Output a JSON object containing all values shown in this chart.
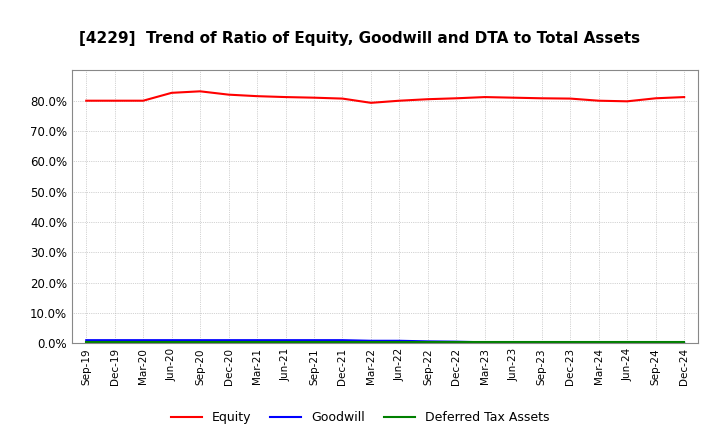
{
  "title": "[4229]  Trend of Ratio of Equity, Goodwill and DTA to Total Assets",
  "x_labels": [
    "Sep-19",
    "Dec-19",
    "Mar-20",
    "Jun-20",
    "Sep-20",
    "Dec-20",
    "Mar-21",
    "Jun-21",
    "Sep-21",
    "Dec-21",
    "Mar-22",
    "Jun-22",
    "Sep-22",
    "Dec-22",
    "Mar-23",
    "Jun-23",
    "Sep-23",
    "Dec-23",
    "Mar-24",
    "Jun-24",
    "Sep-24",
    "Dec-24"
  ],
  "equity": [
    0.8,
    0.8,
    0.8,
    0.826,
    0.831,
    0.82,
    0.815,
    0.812,
    0.81,
    0.807,
    0.793,
    0.8,
    0.805,
    0.808,
    0.812,
    0.81,
    0.808,
    0.807,
    0.8,
    0.798,
    0.808,
    0.812
  ],
  "goodwill": [
    0.01,
    0.01,
    0.01,
    0.01,
    0.01,
    0.01,
    0.01,
    0.01,
    0.01,
    0.01,
    0.008,
    0.008,
    0.006,
    0.005,
    0.003,
    0.002,
    0.001,
    0.001,
    0.001,
    0.001,
    0.001,
    0.001
  ],
  "dta": [
    0.003,
    0.003,
    0.003,
    0.003,
    0.003,
    0.003,
    0.003,
    0.003,
    0.003,
    0.003,
    0.003,
    0.003,
    0.003,
    0.003,
    0.003,
    0.003,
    0.003,
    0.003,
    0.003,
    0.003,
    0.003,
    0.003
  ],
  "equity_color": "#ff0000",
  "goodwill_color": "#0000ff",
  "dta_color": "#008000",
  "ylim": [
    0.0,
    0.9
  ],
  "yticks": [
    0.0,
    0.1,
    0.2,
    0.3,
    0.4,
    0.5,
    0.6,
    0.7,
    0.8
  ],
  "background_color": "#ffffff",
  "grid_color": "#aaaaaa",
  "title_fontsize": 11,
  "legend_labels": [
    "Equity",
    "Goodwill",
    "Deferred Tax Assets"
  ]
}
